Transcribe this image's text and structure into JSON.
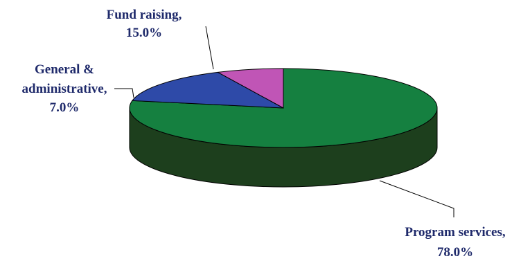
{
  "chart_data": {
    "type": "pie",
    "style": "3d",
    "title": "",
    "slices": [
      {
        "name": "Program services",
        "value": 78.0,
        "label_line1": "Program services,",
        "label_line2": "78.0%",
        "color": "#158040",
        "side_color": "#1d3f1d"
      },
      {
        "name": "Fund raising",
        "value": 15.0,
        "label_line1": "Fund raising,",
        "label_line2": "15.0%",
        "color": "#2e4aa8",
        "side_color": "#1a2a66"
      },
      {
        "name": "General & administrative",
        "value": 7.0,
        "label_line1": "General &",
        "label_line2": "administrative,",
        "label_line3": "7.0%",
        "color": "#c055b6",
        "side_color": "#6e2a68"
      }
    ],
    "legend": "none"
  }
}
